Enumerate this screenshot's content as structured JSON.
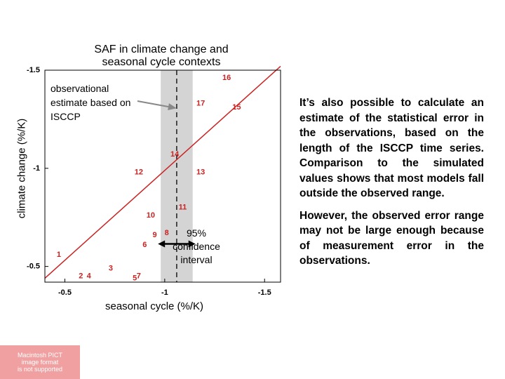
{
  "chart_data": {
    "type": "scatter",
    "title_line1": "SAF in climate change and",
    "title_line2": "seasonal cycle contexts",
    "xlabel": "seasonal cycle (%/K)",
    "ylabel": "climate change (%/K)",
    "xlim": [
      -0.4,
      -1.58
    ],
    "ylim": [
      -0.42,
      -1.5
    ],
    "x_ticks": [
      {
        "value": -0.5,
        "label": "-0.5"
      },
      {
        "value": -1,
        "label": "-1"
      },
      {
        "value": -1.5,
        "label": "-1.5"
      }
    ],
    "y_ticks": [
      {
        "value": -0.5,
        "label": "-0.5"
      },
      {
        "value": -1,
        "label": "-1"
      },
      {
        "value": -1.5,
        "label": "-1.5"
      }
    ],
    "points": [
      {
        "label": "1",
        "x": -0.47,
        "y": -0.56
      },
      {
        "label": "2",
        "x": -0.58,
        "y": -0.45
      },
      {
        "label": "4",
        "x": -0.62,
        "y": -0.45
      },
      {
        "label": "3",
        "x": -0.73,
        "y": -0.49
      },
      {
        "label": "5",
        "x": -0.85,
        "y": -0.44
      },
      {
        "label": "7",
        "x": -0.87,
        "y": -0.45
      },
      {
        "label": "6",
        "x": -0.9,
        "y": -0.61
      },
      {
        "label": "9",
        "x": -0.95,
        "y": -0.66
      },
      {
        "label": "8",
        "x": -1.01,
        "y": -0.67
      },
      {
        "label": "10",
        "x": -0.93,
        "y": -0.76
      },
      {
        "label": "11",
        "x": -1.09,
        "y": -0.8
      },
      {
        "label": "12",
        "x": -0.87,
        "y": -0.98
      },
      {
        "label": "14",
        "x": -1.05,
        "y": -1.07
      },
      {
        "label": "13",
        "x": -1.18,
        "y": -0.98
      },
      {
        "label": "17",
        "x": -1.18,
        "y": -1.33
      },
      {
        "label": "16",
        "x": -1.31,
        "y": -1.46
      },
      {
        "label": "15",
        "x": -1.36,
        "y": -1.31
      }
    ],
    "fit_line": {
      "x": [
        -0.4,
        -1.58
      ],
      "y": [
        -0.44,
        -1.52
      ]
    },
    "observed_estimate": -1.06,
    "ci_range": [
      -0.98,
      -1.14
    ],
    "ci_label_line1": "95%",
    "ci_label_line2": "confidence",
    "ci_label_line3": "interval",
    "annotation": "observational estimate based on ISCCP",
    "grid": false,
    "colors": {
      "points": "#cc2222",
      "fit_line": "#cc2222",
      "ci_band": "#d4d4d4",
      "arrow": "#888888"
    }
  },
  "text": {
    "para1": "It’s also possible to calculate an estimate of the statistical error in the observations, based on the length of the ISCCP time series. Comparison to the simulated values shows that most models fall outside the observed range.",
    "para2": "However, the observed error range may not be large enough because of measurement error in the observations."
  },
  "placeholder": {
    "line1": "Macintosh PICT",
    "line2": "image format",
    "line3": "is not supported"
  }
}
